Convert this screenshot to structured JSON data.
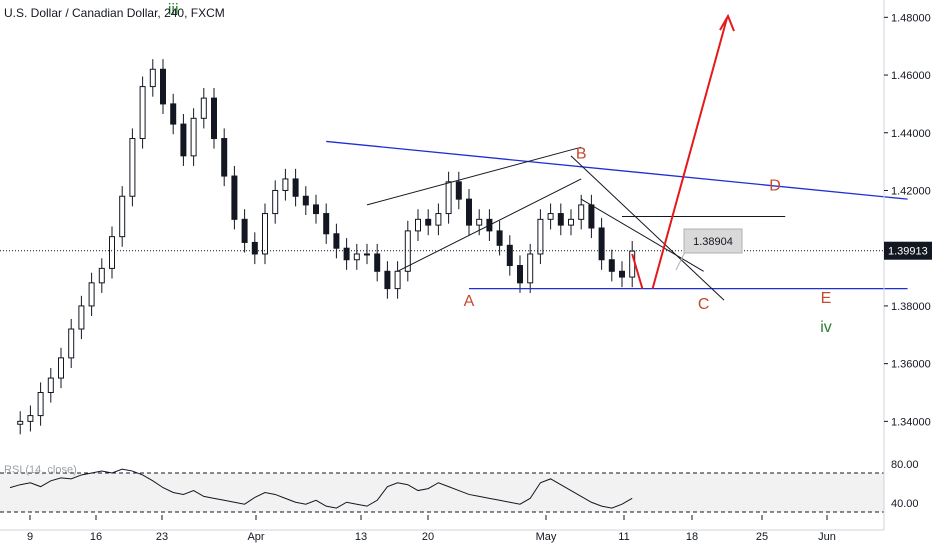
{
  "title": "U.S. Dollar / Canadian Dollar, 240, FXCM",
  "colors": {
    "up": "#131722",
    "down": "#131722",
    "trendline": "#1f2fd6",
    "channel": "#131722",
    "wave_brown": "#c4492e",
    "wave_green": "#2e7d32",
    "forecast": "#e5191b",
    "rsi_line": "#131722",
    "rsi_band": "#f2f2f2",
    "price_tag_bg": "#131722"
  },
  "chart_data": {
    "type": "candlestick",
    "symbol": "U.S. Dollar / Canadian Dollar",
    "interval": "240",
    "source": "FXCM",
    "y_range": [
      1.328,
      1.486
    ],
    "y_ticks": [
      "1.48000",
      "1.46000",
      "1.44000",
      "1.42000",
      "1.40000",
      "1.38000",
      "1.36000",
      "1.34000"
    ],
    "x_ticks": [
      "9",
      "16",
      "23",
      "Apr",
      "13",
      "20",
      "May",
      "11",
      "18",
      "25",
      "Jun"
    ],
    "last_price": "1.39913",
    "price_label": "1.38904",
    "price_path": [
      [
        0,
        1.339
      ],
      [
        1,
        1.34
      ],
      [
        2,
        1.342
      ],
      [
        3,
        1.35
      ],
      [
        4,
        1.355
      ],
      [
        5,
        1.362
      ],
      [
        6,
        1.372
      ],
      [
        7,
        1.38
      ],
      [
        8,
        1.388
      ],
      [
        9,
        1.393
      ],
      [
        10,
        1.404
      ],
      [
        11,
        1.418
      ],
      [
        12,
        1.438
      ],
      [
        13,
        1.456
      ],
      [
        14,
        1.462
      ],
      [
        15,
        1.45
      ],
      [
        16,
        1.443
      ],
      [
        17,
        1.432
      ],
      [
        18,
        1.445
      ],
      [
        19,
        1.452
      ],
      [
        20,
        1.438
      ],
      [
        21,
        1.425
      ],
      [
        22,
        1.41
      ],
      [
        23,
        1.402
      ],
      [
        24,
        1.398
      ],
      [
        25,
        1.412
      ],
      [
        26,
        1.42
      ],
      [
        27,
        1.424
      ],
      [
        28,
        1.418
      ],
      [
        29,
        1.415
      ],
      [
        30,
        1.412
      ],
      [
        31,
        1.405
      ],
      [
        32,
        1.4
      ],
      [
        33,
        1.396
      ],
      [
        34,
        1.398
      ],
      [
        35,
        1.398
      ],
      [
        36,
        1.392
      ],
      [
        37,
        1.386
      ],
      [
        38,
        1.392
      ],
      [
        39,
        1.406
      ],
      [
        40,
        1.41
      ],
      [
        41,
        1.408
      ],
      [
        42,
        1.412
      ],
      [
        43,
        1.423
      ],
      [
        44,
        1.417
      ],
      [
        45,
        1.408
      ],
      [
        46,
        1.41
      ],
      [
        47,
        1.406
      ],
      [
        48,
        1.401
      ],
      [
        49,
        1.394
      ],
      [
        50,
        1.388
      ],
      [
        51,
        1.398
      ],
      [
        52,
        1.41
      ],
      [
        53,
        1.412
      ],
      [
        54,
        1.408
      ],
      [
        55,
        1.41
      ],
      [
        56,
        1.415
      ],
      [
        57,
        1.407
      ],
      [
        58,
        1.396
      ],
      [
        59,
        1.392
      ],
      [
        60,
        1.39
      ],
      [
        61,
        1.399
      ]
    ],
    "trendlines": [
      {
        "from": [
          31,
          1.437
        ],
        "to": [
          88,
          1.417
        ],
        "color": "trendline"
      },
      {
        "from": [
          45,
          1.386
        ],
        "to": [
          88,
          1.386
        ],
        "color": "trendline"
      }
    ],
    "wave_labels": [
      {
        "text": "iii",
        "x": 16,
        "y": 1.481,
        "color": "wave_green"
      },
      {
        "text": "A",
        "x": 45,
        "y": 1.38,
        "color": "wave_brown"
      },
      {
        "text": "B",
        "x": 56,
        "y": 1.431,
        "color": "wave_brown"
      },
      {
        "text": "C",
        "x": 68,
        "y": 1.379,
        "color": "wave_brown"
      },
      {
        "text": "D",
        "x": 75,
        "y": 1.42,
        "color": "wave_brown"
      },
      {
        "text": "E",
        "x": 80,
        "y": 1.381,
        "color": "wave_brown"
      },
      {
        "text": "iv",
        "x": 80,
        "y": 1.371,
        "color": "wave_green"
      }
    ],
    "rsi": {
      "label": "RSI (14, close)",
      "y_ticks": [
        "80.00",
        "40.00"
      ],
      "upper": 70,
      "lower": 30,
      "values": [
        55,
        58,
        60,
        56,
        62,
        65,
        64,
        68,
        70,
        72,
        70,
        74,
        72,
        68,
        62,
        55,
        50,
        48,
        52,
        46,
        44,
        42,
        40,
        38,
        45,
        50,
        48,
        44,
        40,
        38,
        42,
        36,
        34,
        40,
        38,
        36,
        42,
        56,
        60,
        58,
        52,
        54,
        60,
        56,
        52,
        48,
        46,
        44,
        42,
        40,
        38,
        44,
        60,
        64,
        58,
        52,
        46,
        40,
        36,
        34,
        38,
        44
      ]
    }
  }
}
